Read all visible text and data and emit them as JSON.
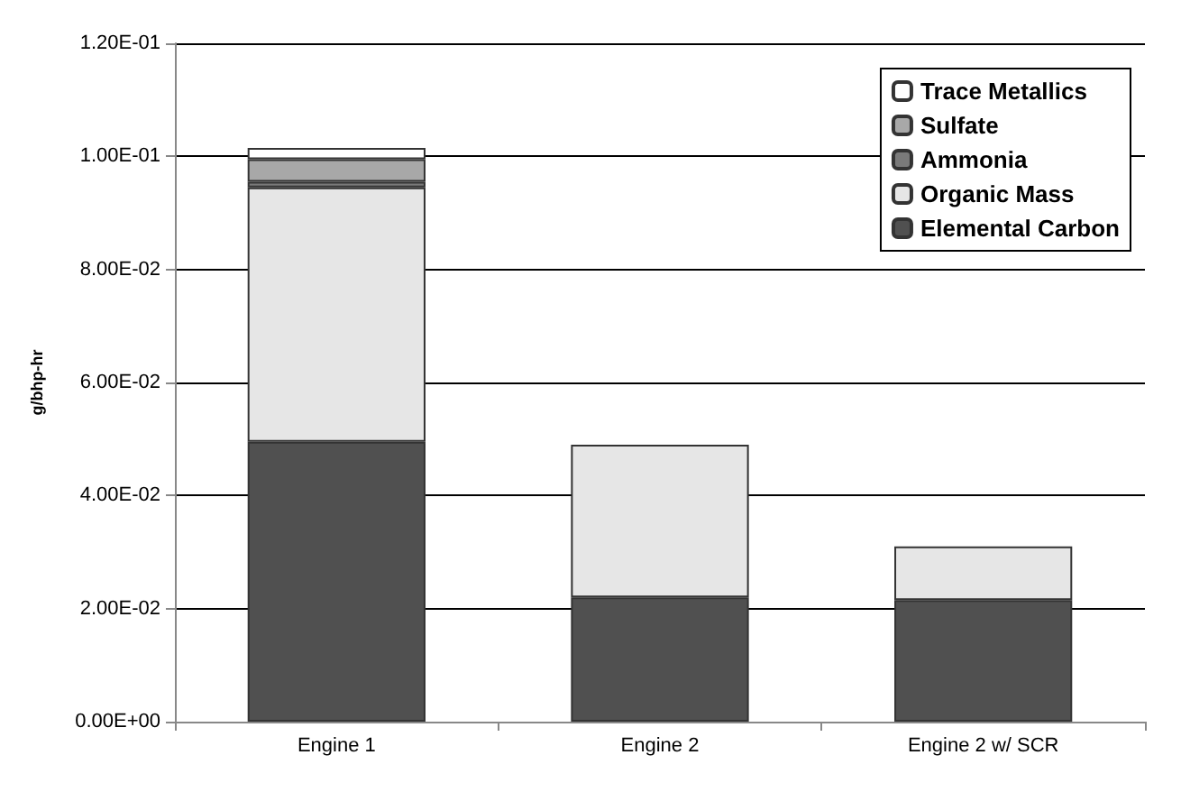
{
  "chart_data": {
    "type": "bar",
    "stacked": true,
    "ylabel": "g/bhp-hr",
    "categories": [
      "Engine 1",
      "Engine 2",
      "Engine 2 w/ SCR"
    ],
    "series": [
      {
        "name": "Elemental Carbon",
        "color": "#505050",
        "values": [
          0.0495,
          0.022,
          0.0215
        ]
      },
      {
        "name": "Organic Mass",
        "color": "#e6e6e6",
        "values": [
          0.045,
          0.027,
          0.0095
        ]
      },
      {
        "name": "Ammonia",
        "color": "#7a7a7a",
        "values": [
          0.001,
          null,
          null
        ]
      },
      {
        "name": "Sulfate",
        "color": "#a8a8a8",
        "values": [
          0.004,
          null,
          null
        ]
      },
      {
        "name": "Trace Metallics",
        "color": "#ffffff",
        "values": [
          0.002,
          null,
          null
        ]
      }
    ],
    "ylim": [
      0,
      0.12
    ],
    "yticks": [
      {
        "value": 0,
        "label": "0.00E+00"
      },
      {
        "value": 0.02,
        "label": "2.00E-02"
      },
      {
        "value": 0.04,
        "label": "4.00E-02"
      },
      {
        "value": 0.06,
        "label": "6.00E-02"
      },
      {
        "value": 0.08,
        "label": "8.00E-02"
      },
      {
        "value": 0.1,
        "label": "1.00E-01"
      },
      {
        "value": 0.12,
        "label": "1.20E-01"
      }
    ],
    "grid": "y",
    "legend": "top right"
  }
}
